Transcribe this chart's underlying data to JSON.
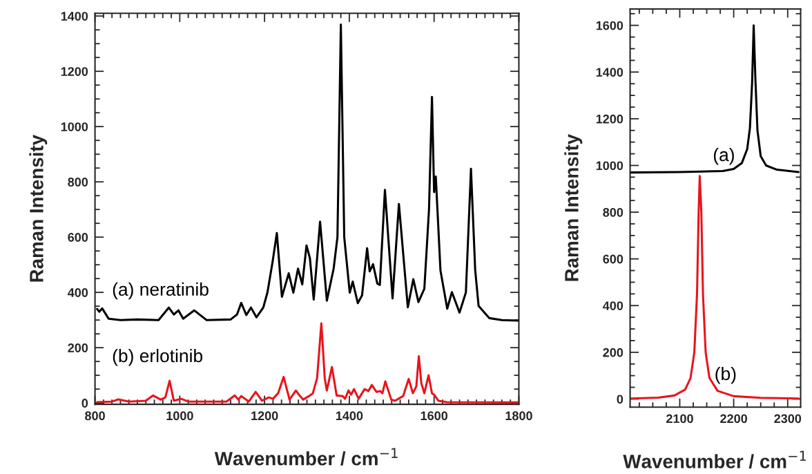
{
  "chart_data": [
    {
      "type": "line",
      "xlabel": "Wavenumber / cm$^{−1}$",
      "ylabel": "Raman Intensity",
      "xlim": [
        800,
        1800
      ],
      "ylim": [
        -5,
        1410
      ],
      "xticks": [
        800,
        1000,
        1200,
        1400,
        1600,
        1800
      ],
      "yticks": [
        0,
        200,
        400,
        600,
        800,
        1000,
        1200,
        1400
      ],
      "grid": false,
      "legend": false,
      "series": [
        {
          "name": "(a) neratinib",
          "color": "#000000",
          "x": [
            805,
            810,
            817,
            832,
            860,
            900,
            950,
            974,
            986,
            997,
            1008,
            1034,
            1063,
            1120,
            1135,
            1145,
            1157,
            1168,
            1181,
            1197,
            1207,
            1219,
            1229,
            1241,
            1257,
            1268,
            1279,
            1289,
            1299,
            1307,
            1316,
            1331,
            1347,
            1363,
            1372,
            1380,
            1388,
            1401,
            1408,
            1420,
            1430,
            1442,
            1448,
            1456,
            1466,
            1472,
            1484,
            1502,
            1517,
            1538,
            1551,
            1563,
            1577,
            1588,
            1595,
            1600,
            1604,
            1615,
            1631,
            1642,
            1660,
            1675,
            1687,
            1697,
            1705,
            1730,
            1760,
            1799
          ],
          "values": [
            340,
            330,
            342,
            305,
            300,
            302,
            300,
            345,
            320,
            335,
            305,
            335,
            300,
            302,
            320,
            362,
            318,
            345,
            310,
            345,
            401,
            511,
            615,
            384,
            469,
            399,
            486,
            429,
            570,
            524,
            374,
            656,
            370,
            486,
            600,
            1369,
            600,
            399,
            439,
            361,
            389,
            560,
            476,
            502,
            432,
            427,
            771,
            378,
            720,
            346,
            448,
            365,
            413,
            700,
            1107,
            763,
            819,
            480,
            341,
            401,
            327,
            400,
            847,
            480,
            351,
            307,
            300,
            298
          ]
        },
        {
          "name": "(b) erlotinib",
          "color": "#e8141c",
          "x": [
            805,
            840,
            855,
            880,
            920,
            937,
            955,
            966,
            976,
            986,
            1003,
            1020,
            1110,
            1130,
            1138,
            1145,
            1163,
            1179,
            1194,
            1210,
            1220,
            1232,
            1245,
            1259,
            1274,
            1281,
            1291,
            1305,
            1314,
            1324,
            1334,
            1342,
            1347,
            1359,
            1370,
            1384,
            1390,
            1398,
            1404,
            1411,
            1422,
            1436,
            1445,
            1453,
            1464,
            1473,
            1478,
            1485,
            1499,
            1508,
            1527,
            1540,
            1550,
            1558,
            1564,
            1570,
            1577,
            1587,
            1595,
            1600,
            1610,
            1630,
            1800
          ],
          "values": [
            3,
            5,
            13,
            5,
            8,
            27,
            12,
            20,
            80,
            8,
            15,
            5,
            5,
            27,
            12,
            25,
            5,
            40,
            8,
            20,
            15,
            35,
            94,
            12,
            45,
            30,
            12,
            25,
            35,
            90,
            288,
            90,
            45,
            130,
            27,
            25,
            15,
            45,
            30,
            50,
            15,
            50,
            43,
            65,
            40,
            43,
            35,
            78,
            12,
            8,
            25,
            87,
            35,
            60,
            169,
            70,
            35,
            100,
            35,
            30,
            8,
            3,
            2
          ]
        }
      ]
    },
    {
      "type": "line",
      "xlabel": "Wavenumber / cm$^{−1}$",
      "ylabel": "Raman Intensity",
      "xlim": [
        2008,
        2324
      ],
      "ylim": [
        -35,
        1670
      ],
      "xticks": [
        2100,
        2200,
        2300
      ],
      "yticks": [
        0,
        200,
        400,
        600,
        800,
        1000,
        1200,
        1400,
        1600
      ],
      "grid": false,
      "legend": false,
      "series": [
        {
          "name": "(a)",
          "color": "#000000",
          "x": [
            2010,
            2100,
            2180,
            2200,
            2215,
            2225,
            2230,
            2234,
            2237,
            2240,
            2244,
            2250,
            2260,
            2280,
            2320
          ],
          "values": [
            970,
            972,
            976,
            985,
            1010,
            1070,
            1160,
            1350,
            1600,
            1380,
            1150,
            1040,
            1000,
            982,
            972
          ]
        },
        {
          "name": "(b)",
          "color": "#e8141c",
          "x": [
            2010,
            2060,
            2090,
            2110,
            2120,
            2127,
            2132,
            2135,
            2137,
            2140,
            2143,
            2148,
            2155,
            2170,
            2200,
            2250,
            2320
          ],
          "values": [
            2,
            6,
            15,
            40,
            90,
            200,
            450,
            800,
            955,
            800,
            450,
            200,
            90,
            35,
            12,
            5,
            2
          ]
        }
      ]
    }
  ]
}
